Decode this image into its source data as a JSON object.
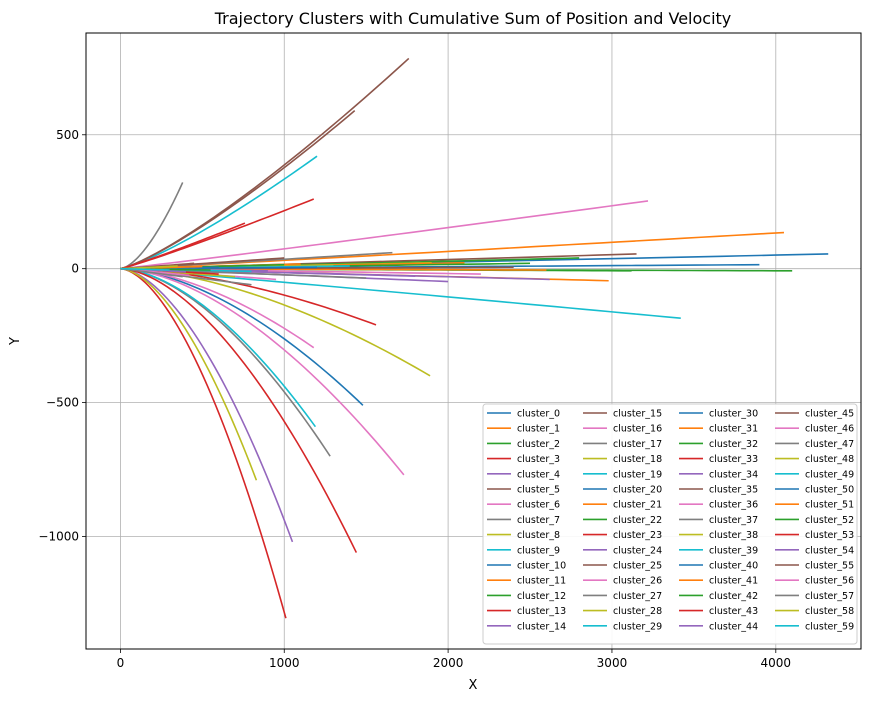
{
  "chart_data": {
    "type": "line",
    "title": "Trajectory Clusters with Cumulative Sum of Position and Velocity",
    "xlabel": "X",
    "ylabel": "Y",
    "xlim": [
      -210,
      4520
    ],
    "ylim": [
      -1420,
      880
    ],
    "xticks": [
      0,
      1000,
      2000,
      3000,
      4000
    ],
    "xtick_labels": [
      "0",
      "1000",
      "2000",
      "3000",
      "4000"
    ],
    "yticks": [
      500,
      0,
      -500,
      -1000
    ],
    "ytick_labels": [
      "500",
      "0",
      "−500",
      "−1000"
    ],
    "grid": true,
    "legend_location": "lower right",
    "legend_columns": 4,
    "series": [
      {
        "name": "cluster_0",
        "color": "#1f77b4",
        "end": [
          4320,
          55
        ],
        "shape": "straight"
      },
      {
        "name": "cluster_1",
        "color": "#ff7f0e",
        "end": [
          4050,
          135
        ],
        "shape": "straight"
      },
      {
        "name": "cluster_2",
        "color": "#2ca02c",
        "end": [
          4100,
          -8
        ],
        "shape": "straight"
      },
      {
        "name": "cluster_3",
        "color": "#d62728",
        "end": [
          1180,
          260
        ],
        "shape": "concave"
      },
      {
        "name": "cluster_4",
        "color": "#9467bd",
        "end": [
          2000,
          -48
        ],
        "shape": "straight"
      },
      {
        "name": "cluster_5",
        "color": "#8c564b",
        "end": [
          1760,
          785
        ],
        "shape": "up"
      },
      {
        "name": "cluster_6",
        "color": "#e377c2",
        "end": [
          3220,
          253
        ],
        "shape": "straight"
      },
      {
        "name": "cluster_7",
        "color": "#7f7f7f",
        "end": [
          1280,
          -700
        ],
        "shape": "down"
      },
      {
        "name": "cluster_8",
        "color": "#bcbd22",
        "end": [
          1890,
          -400
        ],
        "shape": "down"
      },
      {
        "name": "cluster_9",
        "color": "#17becf",
        "end": [
          3420,
          -185
        ],
        "shape": "straight"
      },
      {
        "name": "cluster_10",
        "color": "#1f77b4",
        "end": [
          1480,
          -510
        ],
        "shape": "down"
      },
      {
        "name": "cluster_11",
        "color": "#ff7f0e",
        "end": [
          2980,
          -45
        ],
        "shape": "straight"
      },
      {
        "name": "cluster_12",
        "color": "#2ca02c",
        "end": [
          3120,
          -8
        ],
        "shape": "straight"
      },
      {
        "name": "cluster_13",
        "color": "#d62728",
        "end": [
          1010,
          -1305
        ],
        "shape": "down"
      },
      {
        "name": "cluster_14",
        "color": "#9467bd",
        "end": [
          1050,
          -1020
        ],
        "shape": "down"
      },
      {
        "name": "cluster_15",
        "color": "#8c564b",
        "end": [
          3150,
          55
        ],
        "shape": "straight"
      },
      {
        "name": "cluster_16",
        "color": "#e377c2",
        "end": [
          1180,
          -295
        ],
        "shape": "down"
      },
      {
        "name": "cluster_17",
        "color": "#7f7f7f",
        "end": [
          1660,
          60
        ],
        "shape": "straight"
      },
      {
        "name": "cluster_18",
        "color": "#bcbd22",
        "end": [
          830,
          -790
        ],
        "shape": "down"
      },
      {
        "name": "cluster_19",
        "color": "#17becf",
        "end": [
          1200,
          420
        ],
        "shape": "up"
      },
      {
        "name": "cluster_20",
        "color": "#1f77b4",
        "end": [
          3900,
          15
        ],
        "shape": "straight"
      },
      {
        "name": "cluster_21",
        "color": "#ff7f0e",
        "end": [
          2600,
          -5
        ],
        "shape": "straight"
      },
      {
        "name": "cluster_22",
        "color": "#2ca02c",
        "end": [
          2800,
          40
        ],
        "shape": "straight"
      },
      {
        "name": "cluster_23",
        "color": "#d62728",
        "end": [
          1560,
          -210
        ],
        "shape": "down"
      },
      {
        "name": "cluster_24",
        "color": "#9467bd",
        "end": [
          2620,
          -40
        ],
        "shape": "straight"
      },
      {
        "name": "cluster_25",
        "color": "#8c564b",
        "end": [
          1430,
          590
        ],
        "shape": "up"
      },
      {
        "name": "cluster_26",
        "color": "#e377c2",
        "end": [
          1730,
          -770
        ],
        "shape": "down"
      },
      {
        "name": "cluster_27",
        "color": "#7f7f7f",
        "end": [
          380,
          322
        ],
        "shape": "steep-up"
      },
      {
        "name": "cluster_28",
        "color": "#bcbd22",
        "end": [
          1900,
          22
        ],
        "shape": "straight"
      },
      {
        "name": "cluster_29",
        "color": "#17becf",
        "end": [
          1190,
          -590
        ],
        "shape": "down"
      },
      {
        "name": "cluster_30",
        "color": "#1f77b4",
        "end": [
          2300,
          8
        ],
        "shape": "straight"
      },
      {
        "name": "cluster_31",
        "color": "#ff7f0e",
        "end": [
          2100,
          22
        ],
        "shape": "straight"
      },
      {
        "name": "cluster_32",
        "color": "#2ca02c",
        "end": [
          2500,
          20
        ],
        "shape": "straight"
      },
      {
        "name": "cluster_33",
        "color": "#d62728",
        "end": [
          1440,
          -1060
        ],
        "shape": "down"
      },
      {
        "name": "cluster_34",
        "color": "#9467bd",
        "end": [
          1800,
          -28
        ],
        "shape": "straight"
      },
      {
        "name": "cluster_35",
        "color": "#8c564b",
        "end": [
          2400,
          5
        ],
        "shape": "straight"
      },
      {
        "name": "cluster_36",
        "color": "#e377c2",
        "end": [
          2200,
          -20
        ],
        "shape": "straight"
      },
      {
        "name": "cluster_37",
        "color": "#7f7f7f",
        "end": [
          1500,
          -35
        ],
        "shape": "straight"
      },
      {
        "name": "cluster_38",
        "color": "#bcbd22",
        "end": [
          1300,
          12
        ],
        "shape": "straight"
      },
      {
        "name": "cluster_39",
        "color": "#17becf",
        "end": [
          1400,
          10
        ],
        "shape": "straight"
      },
      {
        "name": "cluster_40",
        "color": "#1f77b4",
        "end": [
          1200,
          5
        ],
        "shape": "straight"
      },
      {
        "name": "cluster_41",
        "color": "#ff7f0e",
        "end": [
          1100,
          18
        ],
        "shape": "straight"
      },
      {
        "name": "cluster_42",
        "color": "#2ca02c",
        "end": [
          1000,
          15
        ],
        "shape": "straight"
      },
      {
        "name": "cluster_43",
        "color": "#d62728",
        "end": [
          760,
          170
        ],
        "shape": "concave"
      },
      {
        "name": "cluster_44",
        "color": "#9467bd",
        "end": [
          900,
          -8
        ],
        "shape": "straight"
      },
      {
        "name": "cluster_45",
        "color": "#8c564b",
        "end": [
          1000,
          40
        ],
        "shape": "straight"
      },
      {
        "name": "cluster_46",
        "color": "#e377c2",
        "end": [
          950,
          -40
        ],
        "shape": "straight"
      },
      {
        "name": "cluster_47",
        "color": "#7f7f7f",
        "end": [
          800,
          -60
        ],
        "shape": "straight"
      },
      {
        "name": "cluster_48",
        "color": "#bcbd22",
        "end": [
          700,
          -30
        ],
        "shape": "straight"
      },
      {
        "name": "cluster_49",
        "color": "#17becf",
        "end": [
          800,
          -10
        ],
        "shape": "straight"
      },
      {
        "name": "cluster_50",
        "color": "#1f77b4",
        "end": [
          600,
          5
        ],
        "shape": "straight"
      },
      {
        "name": "cluster_51",
        "color": "#ff7f0e",
        "end": [
          500,
          8
        ],
        "shape": "straight"
      },
      {
        "name": "cluster_52",
        "color": "#2ca02c",
        "end": [
          550,
          -5
        ],
        "shape": "straight"
      },
      {
        "name": "cluster_53",
        "color": "#d62728",
        "end": [
          600,
          -20
        ],
        "shape": "straight"
      },
      {
        "name": "cluster_54",
        "color": "#9467bd",
        "end": [
          400,
          -12
        ],
        "shape": "straight"
      },
      {
        "name": "cluster_55",
        "color": "#8c564b",
        "end": [
          450,
          20
        ],
        "shape": "straight"
      },
      {
        "name": "cluster_56",
        "color": "#e377c2",
        "end": [
          420,
          -25
        ],
        "shape": "straight"
      },
      {
        "name": "cluster_57",
        "color": "#7f7f7f",
        "end": [
          380,
          -30
        ],
        "shape": "straight"
      },
      {
        "name": "cluster_58",
        "color": "#bcbd22",
        "end": [
          350,
          10
        ],
        "shape": "straight"
      },
      {
        "name": "cluster_59",
        "color": "#17becf",
        "end": [
          300,
          -5
        ],
        "shape": "straight"
      }
    ]
  }
}
